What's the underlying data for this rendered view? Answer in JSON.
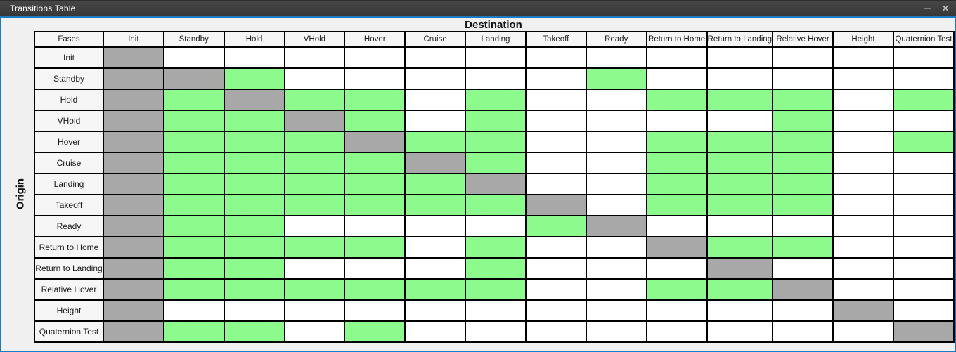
{
  "window": {
    "title": "Transitions Table",
    "minimize_icon": "—",
    "close_icon": "✕"
  },
  "axes": {
    "destination": "Destination",
    "origin": "Origin"
  },
  "table": {
    "corner_label": "Fases",
    "columns": [
      "Init",
      "Standby",
      "Hold",
      "VHold",
      "Hover",
      "Cruise",
      "Landing",
      "Takeoff",
      "Ready",
      "Return to Home",
      "Return to Landing",
      "Relative Hover",
      "Height",
      "Quaternion Test"
    ],
    "rows": [
      {
        "label": "Init",
        "cells": [
          "x",
          "w",
          "w",
          "w",
          "w",
          "w",
          "w",
          "w",
          "w",
          "w",
          "w",
          "w",
          "w",
          "w"
        ]
      },
      {
        "label": "Standby",
        "cells": [
          "x",
          "x",
          "g",
          "w",
          "w",
          "w",
          "w",
          "w",
          "g",
          "w",
          "w",
          "w",
          "w",
          "w"
        ]
      },
      {
        "label": "Hold",
        "cells": [
          "x",
          "g",
          "x",
          "g",
          "g",
          "w",
          "g",
          "w",
          "w",
          "g",
          "g",
          "g",
          "w",
          "g"
        ]
      },
      {
        "label": "VHold",
        "cells": [
          "x",
          "g",
          "g",
          "x",
          "g",
          "w",
          "g",
          "w",
          "w",
          "w",
          "w",
          "g",
          "w",
          "w"
        ]
      },
      {
        "label": "Hover",
        "cells": [
          "x",
          "g",
          "g",
          "g",
          "x",
          "g",
          "g",
          "w",
          "w",
          "g",
          "g",
          "g",
          "w",
          "g"
        ]
      },
      {
        "label": "Cruise",
        "cells": [
          "x",
          "g",
          "g",
          "g",
          "g",
          "x",
          "g",
          "w",
          "w",
          "g",
          "g",
          "g",
          "w",
          "w"
        ]
      },
      {
        "label": "Landing",
        "cells": [
          "x",
          "g",
          "g",
          "g",
          "g",
          "g",
          "x",
          "w",
          "w",
          "g",
          "g",
          "g",
          "w",
          "w"
        ]
      },
      {
        "label": "Takeoff",
        "cells": [
          "x",
          "g",
          "g",
          "g",
          "g",
          "g",
          "g",
          "x",
          "w",
          "g",
          "g",
          "g",
          "w",
          "w"
        ]
      },
      {
        "label": "Ready",
        "cells": [
          "x",
          "g",
          "g",
          "w",
          "w",
          "w",
          "w",
          "g",
          "x",
          "w",
          "w",
          "w",
          "w",
          "w"
        ]
      },
      {
        "label": "Return to Home",
        "cells": [
          "x",
          "g",
          "g",
          "g",
          "g",
          "w",
          "g",
          "w",
          "w",
          "x",
          "g",
          "g",
          "w",
          "w"
        ]
      },
      {
        "label": "Return to Landing",
        "cells": [
          "x",
          "g",
          "g",
          "w",
          "w",
          "w",
          "g",
          "w",
          "w",
          "w",
          "x",
          "w",
          "w",
          "w"
        ]
      },
      {
        "label": "Relative Hover",
        "cells": [
          "x",
          "g",
          "g",
          "g",
          "g",
          "g",
          "g",
          "w",
          "w",
          "g",
          "g",
          "x",
          "w",
          "w"
        ]
      },
      {
        "label": "Height",
        "cells": [
          "x",
          "w",
          "w",
          "w",
          "w",
          "w",
          "w",
          "w",
          "w",
          "w",
          "w",
          "w",
          "x",
          "w"
        ]
      },
      {
        "label": "Quaternion Test",
        "cells": [
          "x",
          "g",
          "g",
          "w",
          "g",
          "w",
          "w",
          "w",
          "w",
          "w",
          "w",
          "w",
          "w",
          "x"
        ]
      }
    ]
  },
  "colors": {
    "allowed_green": "#8CFA8C",
    "self_gray": "#A8A8A8",
    "empty_white": "#FFFFFF",
    "cell_border": "#000000",
    "window_accent": "#1E7AC0",
    "titlebar_bg": "#3C3C3C",
    "content_bg": "#F0F0F0"
  },
  "cell_code_map": {
    "g": "allowed_green",
    "x": "self_gray",
    "w": "empty_white"
  }
}
